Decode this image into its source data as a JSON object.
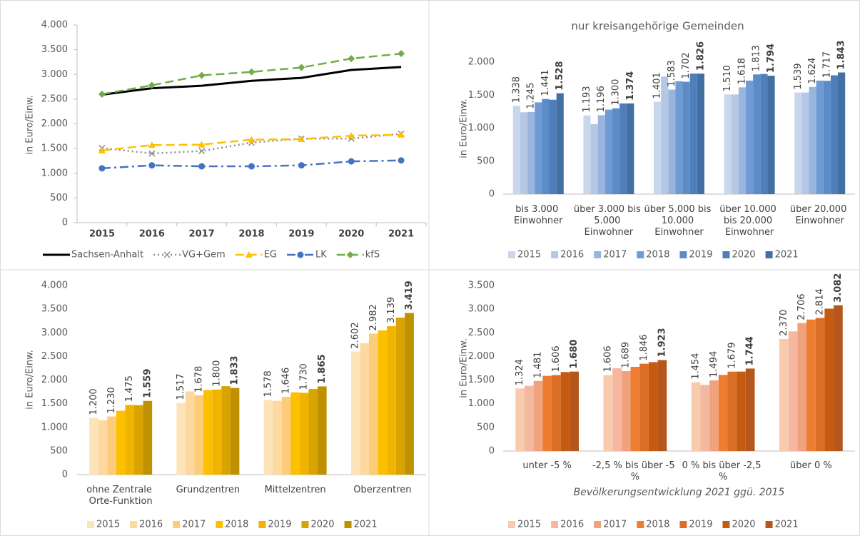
{
  "chart_data": [
    {
      "type": "line",
      "categories": [
        "2015",
        "2016",
        "2017",
        "2018",
        "2019",
        "2020",
        "2021"
      ],
      "ylabel": "in Euro/Einw.",
      "ylim": [
        0,
        4000
      ],
      "yticks": [
        0,
        {
          "value": 500,
          "label": "500"
        },
        {
          "value": 1000,
          "label": "1.000"
        },
        {
          "value": 1500,
          "label": "1.500"
        },
        {
          "value": 2000,
          "label": "2.000"
        },
        {
          "value": 2500,
          "label": "2.500"
        },
        {
          "value": 3000,
          "label": "3.000"
        },
        {
          "value": 3500,
          "label": "3.500"
        },
        {
          "value": 4000,
          "label": "4.000"
        }
      ],
      "series": [
        {
          "name": "Sachsen-Anhalt",
          "color": "#000000",
          "dash": "solid",
          "marker": null,
          "values": [
            2590,
            2720,
            2770,
            2870,
            2930,
            3090,
            3150
          ]
        },
        {
          "name": "VG+Gem",
          "color": "#8c8c8c",
          "dash": "dot",
          "marker": "x",
          "values": [
            1510,
            1400,
            1450,
            1620,
            1700,
            1700,
            1800
          ]
        },
        {
          "name": "EG",
          "color": "#ffc000",
          "dash": "dash",
          "marker": "triangle",
          "values": [
            1460,
            1570,
            1580,
            1680,
            1690,
            1760,
            1780
          ]
        },
        {
          "name": "LK",
          "color": "#4472c4",
          "dash": "dashdot",
          "marker": "circle",
          "values": [
            1100,
            1160,
            1140,
            1140,
            1160,
            1240,
            1260
          ]
        },
        {
          "name": "kfS",
          "color": "#70ad47",
          "dash": "dash",
          "marker": "diamond",
          "values": [
            2600,
            2780,
            2980,
            3050,
            3140,
            3320,
            3420
          ]
        }
      ]
    },
    {
      "type": "bar",
      "title": "nur kreisangehörige Gemeinden",
      "ylabel": "in Euro/Einw.",
      "categories": [
        "bis 3.000 Einwohner",
        "über 3.000 bis 5.000 Einwohner",
        "über 5.000 bis 10.000 Einwohner",
        "über 10.000 bis 20.000 Einwohner",
        "über 20.000 Einwohner"
      ],
      "ylim": [
        0,
        2000
      ],
      "yticks": [
        0,
        {
          "value": 500,
          "label": "500"
        },
        {
          "value": 1000,
          "label": "1.000"
        },
        {
          "value": 1500,
          "label": "1.500"
        },
        {
          "value": 2000,
          "label": "2.000"
        }
      ],
      "series": [
        {
          "name": "2015",
          "color": "#c9d7ec",
          "values": [
            1338,
            1193,
            1401,
            1510,
            1539
          ],
          "value_labels": [
            "1.338",
            "1.193",
            "1.401",
            "1.510",
            "1.539"
          ]
        },
        {
          "name": "2016",
          "color": "#b4c8e6",
          "values": [
            1240,
            1060,
            1780,
            1510,
            1540
          ]
        },
        {
          "name": "2017",
          "color": "#9ab5dd",
          "values": [
            1245,
            1196,
            1583,
            1618,
            1624
          ],
          "value_labels": [
            "1.245",
            "1.196",
            "1.583",
            "1.618",
            "1.624"
          ]
        },
        {
          "name": "2018",
          "color": "#6f9bd4",
          "values": [
            1390,
            1280,
            1710,
            1720,
            1720
          ]
        },
        {
          "name": "2019",
          "color": "#5b8cc8",
          "values": [
            1441,
            1300,
            1702,
            1813,
            1717
          ],
          "value_labels": [
            "1.441",
            "1.300",
            "1.702",
            "1.813",
            "1.717"
          ]
        },
        {
          "name": "2020",
          "color": "#4f7fba",
          "values": [
            1430,
            1374,
            1826,
            1820,
            1800
          ]
        },
        {
          "name": "2021",
          "color": "#446fa3",
          "values": [
            1528,
            1374,
            1826,
            1794,
            1843
          ],
          "value_labels": [
            "1.528",
            "1.374",
            "1.826",
            "1.794",
            "1.843"
          ]
        }
      ]
    },
    {
      "type": "bar",
      "ylabel": "in Euro/Einw.",
      "categories": [
        "ohne Zentrale Orte-Funktion",
        "Grundzentren",
        "Mittelzentren",
        "Oberzentren"
      ],
      "ylim": [
        0,
        4000
      ],
      "yticks": [
        0,
        {
          "value": 500,
          "label": "500"
        },
        {
          "value": 1000,
          "label": "1.000"
        },
        {
          "value": 1500,
          "label": "1.500"
        },
        {
          "value": 2000,
          "label": "2.000"
        },
        {
          "value": 2500,
          "label": "2.500"
        },
        {
          "value": 3000,
          "label": "3.000"
        },
        {
          "value": 3500,
          "label": "3.500"
        },
        {
          "value": 4000,
          "label": "4.000"
        }
      ],
      "series": [
        {
          "name": "2015",
          "color": "#fde4b8",
          "values": [
            1200,
            1517,
            1578,
            2602
          ],
          "value_labels": [
            "1.200",
            "1.517",
            "1.578",
            "2.602"
          ]
        },
        {
          "name": "2016",
          "color": "#fdd9a0",
          "values": [
            1150,
            1760,
            1560,
            2780
          ]
        },
        {
          "name": "2017",
          "color": "#fccc7a",
          "values": [
            1230,
            1678,
            1646,
            2982
          ],
          "value_labels": [
            "1.230",
            "1.678",
            "1.646",
            "2.982"
          ]
        },
        {
          "name": "2018",
          "color": "#fcc000",
          "values": [
            1350,
            1790,
            1740,
            3050
          ]
        },
        {
          "name": "2019",
          "color": "#f0b400",
          "values": [
            1475,
            1800,
            1730,
            3139
          ],
          "value_labels": [
            "1.475",
            "1.800",
            "1.730",
            "3.139"
          ]
        },
        {
          "name": "2020",
          "color": "#d9a400",
          "values": [
            1470,
            1870,
            1810,
            3320
          ]
        },
        {
          "name": "2021",
          "color": "#bf9000",
          "values": [
            1559,
            1833,
            1865,
            3419
          ],
          "value_labels": [
            "1.559",
            "1.833",
            "1.865",
            "3.419"
          ]
        }
      ]
    },
    {
      "type": "bar",
      "ylabel": "in Euro/Einw.",
      "xlabel": "Bevölkerungsentwicklung 2021 ggü. 2015",
      "categories": [
        "unter -5 %",
        "-2,5 % bis über -5 %",
        "0 % bis über -2,5 %",
        "über 0 %"
      ],
      "ylim": [
        0,
        3500
      ],
      "yticks": [
        0,
        {
          "value": 500,
          "label": "500"
        },
        {
          "value": 1000,
          "label": "1.000"
        },
        {
          "value": 1500,
          "label": "1.500"
        },
        {
          "value": 2000,
          "label": "2.000"
        },
        {
          "value": 2500,
          "label": "2.500"
        },
        {
          "value": 3000,
          "label": "3.000"
        },
        {
          "value": 3500,
          "label": "3.500"
        }
      ],
      "series": [
        {
          "name": "2015",
          "color": "#f8cbad",
          "values": [
            1324,
            1606,
            1454,
            2370
          ],
          "value_labels": [
            "1.324",
            "1.606",
            "1.454",
            "2.370"
          ]
        },
        {
          "name": "2016",
          "color": "#f4b8a0",
          "values": [
            1380,
            1750,
            1400,
            2530
          ]
        },
        {
          "name": "2017",
          "color": "#f0a27c",
          "values": [
            1481,
            1689,
            1494,
            2706
          ],
          "value_labels": [
            "1.481",
            "1.689",
            "1.494",
            "2.706"
          ]
        },
        {
          "name": "2018",
          "color": "#ed7d31",
          "values": [
            1590,
            1780,
            1610,
            2780
          ]
        },
        {
          "name": "2019",
          "color": "#db6f28",
          "values": [
            1606,
            1846,
            1679,
            2814
          ],
          "value_labels": [
            "1.606",
            "1.846",
            "1.679",
            "2.814"
          ]
        },
        {
          "name": "2020",
          "color": "#c55a11",
          "values": [
            1670,
            1880,
            1680,
            3010
          ]
        },
        {
          "name": "2021",
          "color": "#b5561c",
          "values": [
            1680,
            1923,
            1744,
            3082
          ],
          "value_labels": [
            "1.680",
            "1.923",
            "1.744",
            "3.082"
          ]
        }
      ]
    }
  ]
}
